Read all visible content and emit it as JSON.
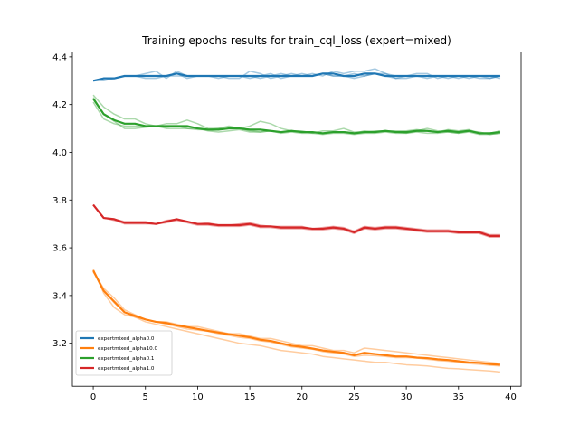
{
  "chart_data": {
    "type": "line",
    "title": "Training epochs results for train_cql_loss (expert=mixed)",
    "xlabel": "",
    "ylabel": "",
    "xlim": [
      -2,
      41
    ],
    "ylim": [
      3.02,
      4.42
    ],
    "xticks": [
      0,
      5,
      10,
      15,
      20,
      25,
      30,
      35,
      40
    ],
    "yticks": [
      3.2,
      3.4,
      3.6,
      3.8,
      4.0,
      4.2,
      4.4
    ],
    "xtick_labels": [
      "0",
      "5",
      "10",
      "15",
      "20",
      "25",
      "30",
      "35",
      "40"
    ],
    "ytick_labels": [
      "3.2",
      "3.4",
      "3.6",
      "3.8",
      "4.0",
      "4.2",
      "4.4"
    ],
    "grid": false,
    "legend_position": "lower-left",
    "x": [
      0,
      1,
      2,
      3,
      4,
      5,
      6,
      7,
      8,
      9,
      10,
      11,
      12,
      13,
      14,
      15,
      16,
      17,
      18,
      19,
      20,
      21,
      22,
      23,
      24,
      25,
      26,
      27,
      28,
      29,
      30,
      31,
      32,
      33,
      34,
      35,
      36,
      37,
      38,
      39
    ],
    "series": [
      {
        "name": "expertmixed_alpha0.0",
        "color": "#1f77b4",
        "values": [
          4.3,
          4.31,
          4.31,
          4.32,
          4.32,
          4.32,
          4.32,
          4.32,
          4.33,
          4.32,
          4.32,
          4.32,
          4.32,
          4.32,
          4.32,
          4.32,
          4.32,
          4.32,
          4.32,
          4.32,
          4.32,
          4.32,
          4.33,
          4.33,
          4.32,
          4.32,
          4.33,
          4.33,
          4.32,
          4.32,
          4.32,
          4.32,
          4.32,
          4.32,
          4.32,
          4.32,
          4.32,
          4.32,
          4.32,
          4.32
        ],
        "runs": [
          [
            4.3,
            4.31,
            4.31,
            4.32,
            4.32,
            4.33,
            4.34,
            4.31,
            4.34,
            4.32,
            4.32,
            4.32,
            4.32,
            4.31,
            4.31,
            4.34,
            4.33,
            4.31,
            4.32,
            4.33,
            4.32,
            4.33,
            4.32,
            4.34,
            4.33,
            4.34,
            4.34,
            4.35,
            4.33,
            4.31,
            4.32,
            4.33,
            4.33,
            4.31,
            4.32,
            4.32,
            4.31,
            4.32,
            4.31,
            4.32
          ],
          [
            4.3,
            4.31,
            4.31,
            4.32,
            4.32,
            4.31,
            4.31,
            4.32,
            4.33,
            4.31,
            4.32,
            4.32,
            4.31,
            4.32,
            4.32,
            4.32,
            4.31,
            4.32,
            4.33,
            4.32,
            4.32,
            4.32,
            4.33,
            4.32,
            4.32,
            4.31,
            4.32,
            4.33,
            4.32,
            4.31,
            4.31,
            4.32,
            4.31,
            4.32,
            4.31,
            4.32,
            4.32,
            4.31,
            4.31,
            4.32
          ],
          [
            4.3,
            4.3,
            4.31,
            4.32,
            4.32,
            4.32,
            4.32,
            4.32,
            4.32,
            4.32,
            4.32,
            4.32,
            4.32,
            4.32,
            4.32,
            4.31,
            4.32,
            4.33,
            4.31,
            4.32,
            4.33,
            4.32,
            4.33,
            4.32,
            4.32,
            4.33,
            4.32,
            4.33,
            4.33,
            4.32,
            4.32,
            4.32,
            4.32,
            4.32,
            4.32,
            4.31,
            4.32,
            4.32,
            4.32,
            4.31
          ]
        ]
      },
      {
        "name": "expertmixed_alpha10.0",
        "color": "#ff7f0e",
        "values": [
          3.505,
          3.42,
          3.375,
          3.33,
          3.315,
          3.3,
          3.29,
          3.285,
          3.275,
          3.268,
          3.26,
          3.252,
          3.245,
          3.238,
          3.232,
          3.225,
          3.215,
          3.21,
          3.2,
          3.19,
          3.185,
          3.178,
          3.17,
          3.165,
          3.16,
          3.15,
          3.16,
          3.155,
          3.15,
          3.145,
          3.145,
          3.14,
          3.138,
          3.133,
          3.13,
          3.125,
          3.12,
          3.118,
          3.113,
          3.11
        ],
        "runs": [
          [
            3.51,
            3.41,
            3.35,
            3.32,
            3.31,
            3.3,
            3.29,
            3.29,
            3.28,
            3.27,
            3.27,
            3.26,
            3.25,
            3.24,
            3.24,
            3.23,
            3.22,
            3.22,
            3.21,
            3.2,
            3.19,
            3.19,
            3.18,
            3.17,
            3.17,
            3.16,
            3.18,
            3.175,
            3.17,
            3.165,
            3.16,
            3.155,
            3.15,
            3.145,
            3.14,
            3.135,
            3.13,
            3.125,
            3.12,
            3.115
          ],
          [
            3.5,
            3.43,
            3.39,
            3.34,
            3.32,
            3.3,
            3.29,
            3.28,
            3.27,
            3.26,
            3.255,
            3.25,
            3.24,
            3.233,
            3.225,
            3.22,
            3.21,
            3.205,
            3.195,
            3.185,
            3.18,
            3.175,
            3.165,
            3.16,
            3.155,
            3.145,
            3.15,
            3.148,
            3.145,
            3.14,
            3.14,
            3.138,
            3.133,
            3.128,
            3.125,
            3.12,
            3.115,
            3.112,
            3.108,
            3.105
          ],
          [
            3.5,
            3.42,
            3.37,
            3.33,
            3.31,
            3.29,
            3.28,
            3.27,
            3.26,
            3.25,
            3.24,
            3.23,
            3.22,
            3.21,
            3.2,
            3.195,
            3.19,
            3.18,
            3.17,
            3.165,
            3.16,
            3.155,
            3.145,
            3.14,
            3.135,
            3.13,
            3.125,
            3.12,
            3.12,
            3.115,
            3.11,
            3.108,
            3.105,
            3.1,
            3.095,
            3.093,
            3.09,
            3.087,
            3.084,
            3.08
          ]
        ]
      },
      {
        "name": "expertmixed_alpha0.1",
        "color": "#2ca02c",
        "values": [
          4.225,
          4.16,
          4.135,
          4.12,
          4.12,
          4.11,
          4.11,
          4.11,
          4.11,
          4.11,
          4.1,
          4.095,
          4.095,
          4.1,
          4.1,
          4.095,
          4.095,
          4.09,
          4.085,
          4.09,
          4.085,
          4.085,
          4.08,
          4.085,
          4.085,
          4.08,
          4.085,
          4.085,
          4.09,
          4.085,
          4.085,
          4.09,
          4.09,
          4.085,
          4.09,
          4.085,
          4.09,
          4.08,
          4.08,
          4.085
        ],
        "runs": [
          [
            4.24,
            4.19,
            4.16,
            4.14,
            4.14,
            4.12,
            4.11,
            4.12,
            4.12,
            4.135,
            4.12,
            4.1,
            4.1,
            4.11,
            4.1,
            4.11,
            4.13,
            4.12,
            4.1,
            4.09,
            4.09,
            4.08,
            4.09,
            4.09,
            4.1,
            4.085,
            4.085,
            4.09,
            4.09,
            4.085,
            4.08,
            4.09,
            4.1,
            4.09,
            4.085,
            4.08,
            4.09,
            4.085,
            4.075,
            4.08
          ],
          [
            4.23,
            4.16,
            4.13,
            4.1,
            4.1,
            4.105,
            4.11,
            4.1,
            4.1,
            4.1,
            4.1,
            4.09,
            4.085,
            4.09,
            4.095,
            4.085,
            4.085,
            4.09,
            4.08,
            4.085,
            4.08,
            4.08,
            4.075,
            4.08,
            4.08,
            4.075,
            4.08,
            4.08,
            4.085,
            4.08,
            4.08,
            4.085,
            4.08,
            4.08,
            4.085,
            4.08,
            4.085,
            4.075,
            4.075,
            4.08
          ],
          [
            4.21,
            4.14,
            4.12,
            4.11,
            4.11,
            4.11,
            4.11,
            4.105,
            4.11,
            4.1,
            4.095,
            4.095,
            4.1,
            4.1,
            4.1,
            4.09,
            4.085,
            4.09,
            4.085,
            4.09,
            4.085,
            4.085,
            4.08,
            4.085,
            4.085,
            4.08,
            4.09,
            4.085,
            4.09,
            4.09,
            4.09,
            4.095,
            4.09,
            4.085,
            4.095,
            4.09,
            4.095,
            4.08,
            4.08,
            4.09
          ]
        ]
      },
      {
        "name": "expertmixed_alpha1.0",
        "color": "#d62728",
        "values": [
          3.78,
          3.725,
          3.72,
          3.705,
          3.705,
          3.705,
          3.7,
          3.71,
          3.72,
          3.71,
          3.7,
          3.7,
          3.695,
          3.695,
          3.695,
          3.7,
          3.69,
          3.69,
          3.685,
          3.685,
          3.685,
          3.68,
          3.68,
          3.685,
          3.68,
          3.665,
          3.685,
          3.68,
          3.685,
          3.685,
          3.68,
          3.675,
          3.67,
          3.67,
          3.67,
          3.665,
          3.665,
          3.665,
          3.65,
          3.65
        ],
        "runs": [
          [
            3.78,
            3.725,
            3.72,
            3.71,
            3.71,
            3.71,
            3.7,
            3.715,
            3.72,
            3.71,
            3.7,
            3.705,
            3.695,
            3.695,
            3.7,
            3.705,
            3.695,
            3.69,
            3.69,
            3.69,
            3.69,
            3.68,
            3.685,
            3.69,
            3.685,
            3.67,
            3.69,
            3.685,
            3.69,
            3.69,
            3.685,
            3.68,
            3.675,
            3.675,
            3.675,
            3.67,
            3.665,
            3.67,
            3.655,
            3.655
          ],
          [
            3.78,
            3.725,
            3.715,
            3.7,
            3.7,
            3.7,
            3.7,
            3.705,
            3.715,
            3.705,
            3.695,
            3.695,
            3.69,
            3.69,
            3.69,
            3.695,
            3.685,
            3.685,
            3.68,
            3.68,
            3.68,
            3.675,
            3.675,
            3.68,
            3.675,
            3.66,
            3.68,
            3.675,
            3.68,
            3.68,
            3.675,
            3.67,
            3.665,
            3.665,
            3.665,
            3.66,
            3.66,
            3.66,
            3.645,
            3.645
          ],
          [
            3.78,
            3.725,
            3.72,
            3.705,
            3.705,
            3.705,
            3.7,
            3.71,
            3.72,
            3.71,
            3.7,
            3.7,
            3.695,
            3.695,
            3.695,
            3.7,
            3.69,
            3.69,
            3.685,
            3.685,
            3.685,
            3.68,
            3.68,
            3.685,
            3.68,
            3.665,
            3.685,
            3.68,
            3.685,
            3.685,
            3.68,
            3.675,
            3.67,
            3.67,
            3.67,
            3.665,
            3.665,
            3.665,
            3.65,
            3.65
          ]
        ]
      }
    ]
  }
}
